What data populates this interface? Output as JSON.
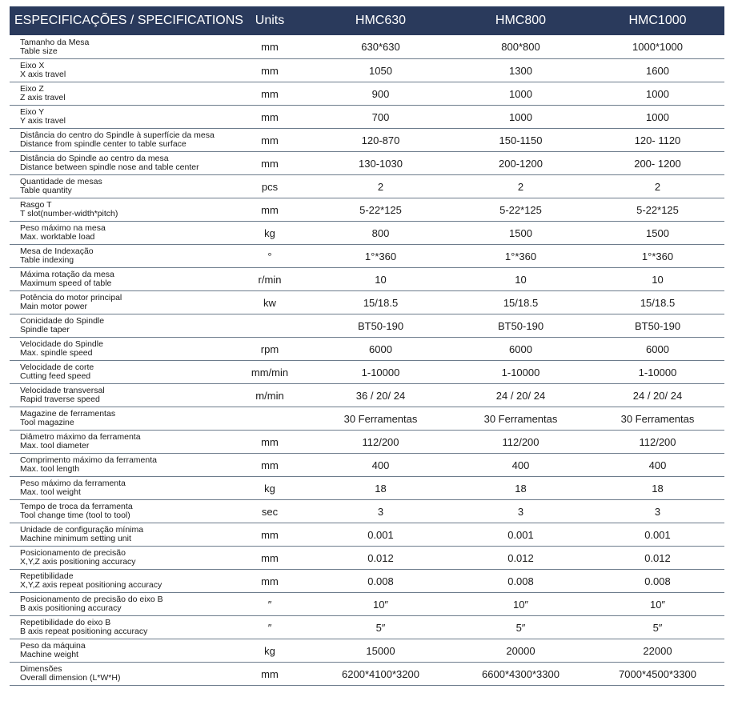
{
  "header": {
    "spec_title": "ESPECIFICAÇÕES / SPECIFICATIONS",
    "units_title": "Units",
    "models": [
      "HMC630",
      "HMC800",
      "HMC1000"
    ]
  },
  "rows": [
    {
      "pt": "Tamanho da Mesa",
      "en": "Table size",
      "unit": "mm",
      "v": [
        "630*630",
        "800*800",
        "1000*1000"
      ]
    },
    {
      "pt": "Eixo X",
      "en": "X axis travel",
      "unit": "mm",
      "v": [
        "1050",
        "1300",
        "1600"
      ]
    },
    {
      "pt": "Eixo Z",
      "en": "Z axis travel",
      "unit": "mm",
      "v": [
        "900",
        "1000",
        "1000"
      ]
    },
    {
      "pt": "Eixo Y",
      "en": "Y axis travel",
      "unit": "mm",
      "v": [
        "700",
        "1000",
        "1000"
      ]
    },
    {
      "pt": "Distância do centro do Spindle à superfície da mesa",
      "en": "Distance from  spindle center to table surface",
      "unit": "mm",
      "v": [
        "120-870",
        "150-1150",
        "120- 1120"
      ]
    },
    {
      "pt": "Distância do Spindle ao centro da mesa",
      "en": "Distance between spindle nose and table center",
      "unit": "mm",
      "v": [
        "130-1030",
        "200-1200",
        "200- 1200"
      ]
    },
    {
      "pt": "Quantidade de mesas",
      "en": "Table quantity",
      "unit": "pcs",
      "v": [
        "2",
        "2",
        "2"
      ]
    },
    {
      "pt": "Rasgo T",
      "en": "T slot(number-width*pitch)",
      "unit": "mm",
      "v": [
        "5-22*125",
        "5-22*125",
        "5-22*125"
      ]
    },
    {
      "pt": "Peso máximo na mesa",
      "en": "Max. worktable load",
      "unit": "kg",
      "v": [
        "800",
        "1500",
        "1500"
      ]
    },
    {
      "pt": "Mesa de Indexação",
      "en": "Table indexing",
      "unit": "°",
      "v": [
        "1°*360",
        "1°*360",
        "1°*360"
      ]
    },
    {
      "pt": "Máxima rotação da mesa",
      "en": "Maximum speed of table",
      "unit": "r/min",
      "v": [
        "10",
        "10",
        "10"
      ]
    },
    {
      "pt": "Potência do motor principal",
      "en": "Main motor power",
      "unit": "kw",
      "v": [
        "15/18.5",
        "15/18.5",
        "15/18.5"
      ]
    },
    {
      "pt": "Conicidade do Spindle",
      "en": "Spindle taper",
      "unit": "",
      "v": [
        "BT50-190",
        "BT50-190",
        "BT50-190"
      ]
    },
    {
      "pt": "Velocidade do Spindle",
      "en": "Max. spindle speed",
      "unit": "rpm",
      "v": [
        "6000",
        "6000",
        "6000"
      ]
    },
    {
      "pt": "Velocidade de corte",
      "en": "Cutting feed speed",
      "unit": "mm/min",
      "v": [
        "1-10000",
        "1-10000",
        "1-10000"
      ]
    },
    {
      "pt": "Velocidade transversal",
      "en": "Rapid traverse speed",
      "unit": "m/min",
      "v": [
        "36 / 20/ 24",
        "24 / 20/ 24",
        "24 / 20/ 24"
      ]
    },
    {
      "pt": "Magazine de ferramentas",
      "en": "Tool magazine",
      "unit": "",
      "v": [
        "30 Ferramentas",
        "30 Ferramentas",
        "30 Ferramentas"
      ]
    },
    {
      "pt": "Diâmetro máximo da ferramenta",
      "en": "Max. tool diameter",
      "unit": "mm",
      "v": [
        "112/200",
        "112/200",
        "112/200"
      ]
    },
    {
      "pt": "Comprimento máximo da ferramenta",
      "en": "Max. tool length",
      "unit": "mm",
      "v": [
        "400",
        "400",
        "400"
      ]
    },
    {
      "pt": "Peso máximo da ferramenta",
      "en": "Max. tool weight",
      "unit": "kg",
      "v": [
        "18",
        "18",
        "18"
      ]
    },
    {
      "pt": "Tempo de troca da ferramenta",
      "en": "Tool change time (tool to tool)",
      "unit": "sec",
      "v": [
        "3",
        "3",
        "3"
      ]
    },
    {
      "pt": "Unidade de configuração mínima",
      "en": "Machine minimum setting unit",
      "unit": "mm",
      "v": [
        "0.001",
        "0.001",
        "0.001"
      ]
    },
    {
      "pt": "Posicionamento de precisão",
      "en": "X,Y,Z axis positioning accuracy",
      "unit": "mm",
      "v": [
        "0.012",
        "0.012",
        "0.012"
      ]
    },
    {
      "pt": "Repetibilidade",
      "en": "X,Y,Z axis repeat positioning accuracy",
      "unit": "mm",
      "v": [
        "0.008",
        "0.008",
        "0.008"
      ]
    },
    {
      "pt": "Posicionamento de precisão do eixo B",
      "en": "B axis positioning accuracy",
      "unit": "″",
      "v": [
        "10″",
        "10″",
        "10″"
      ]
    },
    {
      "pt": "Repetibilidade do eixo B",
      "en": "B axis repeat positioning accuracy",
      "unit": "″",
      "v": [
        "5″",
        "5″",
        "5″"
      ]
    },
    {
      "pt": "Peso da máquina",
      "en": "Machine weight",
      "unit": "kg",
      "v": [
        "15000",
        "20000",
        "22000"
      ]
    },
    {
      "pt": "Dimensões",
      "en": "Overall dimension (L*W*H)",
      "unit": "mm",
      "v": [
        "6200*4100*3200",
        "6600*4300*3300",
        "7000*4500*3300"
      ]
    }
  ]
}
